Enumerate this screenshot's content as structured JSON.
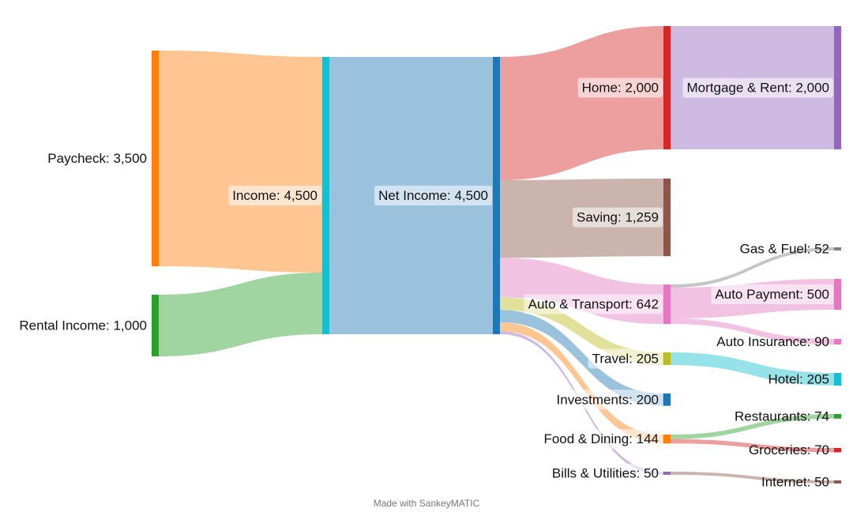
{
  "chart_data": {
    "type": "sankey",
    "nodes": [
      {
        "id": "paycheck",
        "label": "Paycheck",
        "value": "3,500",
        "color": "#ff7f0e"
      },
      {
        "id": "rental",
        "label": "Rental Income",
        "value": "1,000",
        "color": "#2ca02c"
      },
      {
        "id": "income",
        "label": "Income",
        "value": "4,500",
        "color": "#17becf"
      },
      {
        "id": "net",
        "label": "Net Income",
        "value": "4,500",
        "color": "#1f77b4"
      },
      {
        "id": "home",
        "label": "Home",
        "value": "2,000",
        "color": "#d62728"
      },
      {
        "id": "saving",
        "label": "Saving",
        "value": "1,259",
        "color": "#8c564b"
      },
      {
        "id": "auto",
        "label": "Auto & Transport",
        "value": "642",
        "color": "#e377c2"
      },
      {
        "id": "travel",
        "label": "Travel",
        "value": "205",
        "color": "#bcbd22"
      },
      {
        "id": "invest",
        "label": "Investments",
        "value": "200",
        "color": "#1f77b4"
      },
      {
        "id": "food",
        "label": "Food & Dining",
        "value": "144",
        "color": "#ff7f0e"
      },
      {
        "id": "bills",
        "label": "Bills & Utilities",
        "value": "50",
        "color": "#9467bd"
      },
      {
        "id": "mortgage",
        "label": "Mortgage & Rent",
        "value": "2,000",
        "color": "#9467bd"
      },
      {
        "id": "gas",
        "label": "Gas & Fuel",
        "value": "52",
        "color": "#7f7f7f"
      },
      {
        "id": "autopay",
        "label": "Auto Payment",
        "value": "500",
        "color": "#e377c2"
      },
      {
        "id": "autoins",
        "label": "Auto Insurance",
        "value": "90",
        "color": "#e377c2"
      },
      {
        "id": "hotel",
        "label": "Hotel",
        "value": "205",
        "color": "#17becf"
      },
      {
        "id": "restaurants",
        "label": "Restaurants",
        "value": "74",
        "color": "#2ca02c"
      },
      {
        "id": "groceries",
        "label": "Groceries",
        "value": "70",
        "color": "#d62728"
      },
      {
        "id": "internet",
        "label": "Internet",
        "value": "50",
        "color": "#8c564b"
      }
    ],
    "links": [
      {
        "source": "paycheck",
        "target": "income",
        "value": 3500
      },
      {
        "source": "rental",
        "target": "income",
        "value": 1000
      },
      {
        "source": "income",
        "target": "net",
        "value": 4500
      },
      {
        "source": "net",
        "target": "home",
        "value": 2000
      },
      {
        "source": "net",
        "target": "saving",
        "value": 1259
      },
      {
        "source": "net",
        "target": "auto",
        "value": 642
      },
      {
        "source": "net",
        "target": "travel",
        "value": 205
      },
      {
        "source": "net",
        "target": "invest",
        "value": 200
      },
      {
        "source": "net",
        "target": "food",
        "value": 144
      },
      {
        "source": "net",
        "target": "bills",
        "value": 50
      },
      {
        "source": "home",
        "target": "mortgage",
        "value": 2000
      },
      {
        "source": "auto",
        "target": "gas",
        "value": 52
      },
      {
        "source": "auto",
        "target": "autopay",
        "value": 500
      },
      {
        "source": "auto",
        "target": "autoins",
        "value": 90
      },
      {
        "source": "travel",
        "target": "hotel",
        "value": 205
      },
      {
        "source": "food",
        "target": "restaurants",
        "value": 74
      },
      {
        "source": "food",
        "target": "groceries",
        "value": 70
      },
      {
        "source": "bills",
        "target": "internet",
        "value": 50
      }
    ]
  },
  "footer": "Made with SankeyMATIC"
}
